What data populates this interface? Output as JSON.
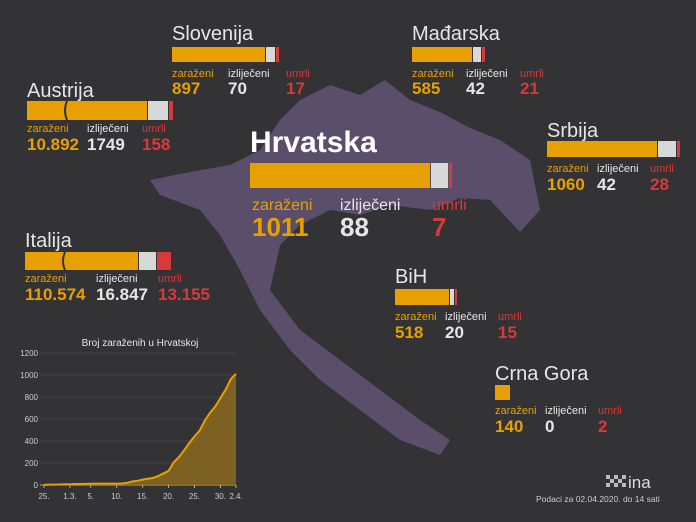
{
  "labels": {
    "cases": "zaraženi",
    "recovered": "izliječeni",
    "deaths": "umrli"
  },
  "countries": [
    {
      "name": "Slovenija",
      "cases": "897",
      "recovered": "70",
      "deaths": "17"
    },
    {
      "name": "Mađarska",
      "cases": "585",
      "recovered": "42",
      "deaths": "21"
    },
    {
      "name": "Austrija",
      "cases": "10.892",
      "recovered": "1749",
      "deaths": "158"
    },
    {
      "name": "Hrvatska",
      "cases": "1011",
      "recovered": "88",
      "deaths": "7"
    },
    {
      "name": "Srbija",
      "cases": "1060",
      "recovered": "42",
      "deaths": "28"
    },
    {
      "name": "Italija",
      "cases": "110.574",
      "recovered": "16.847",
      "deaths": "13.155"
    },
    {
      "name": "BiH",
      "cases": "518",
      "recovered": "20",
      "deaths": "15"
    },
    {
      "name": "Crna Gora",
      "cases": "140",
      "recovered": "0",
      "deaths": "2"
    }
  ],
  "logo": "ina",
  "footer": "Podaci za 02.04.2020. do 14 sati",
  "chart_data": {
    "type": "area",
    "title": "Broj zaraženih u Hrvatskoj",
    "categories": [
      "25.",
      null,
      null,
      null,
      null,
      "1.3.",
      null,
      null,
      null,
      "5.",
      null,
      null,
      null,
      null,
      "10.",
      null,
      null,
      null,
      null,
      "15.",
      null,
      null,
      null,
      null,
      "20.",
      null,
      null,
      null,
      null,
      "25.",
      null,
      null,
      null,
      null,
      "30.",
      null,
      null,
      "2.4."
    ],
    "values": [
      1,
      3,
      3,
      5,
      7,
      7,
      9,
      9,
      10,
      11,
      12,
      12,
      12,
      12,
      12,
      14,
      19,
      32,
      38,
      49,
      57,
      65,
      81,
      105,
      128,
      206,
      254,
      315,
      382,
      442,
      495,
      586,
      657,
      713,
      790,
      867,
      963,
      1011
    ],
    "color": "#e8a000",
    "ylim": [
      0,
      1200
    ],
    "yticks": [
      0,
      200,
      400,
      600,
      800,
      1000,
      1200
    ],
    "grid": true
  }
}
